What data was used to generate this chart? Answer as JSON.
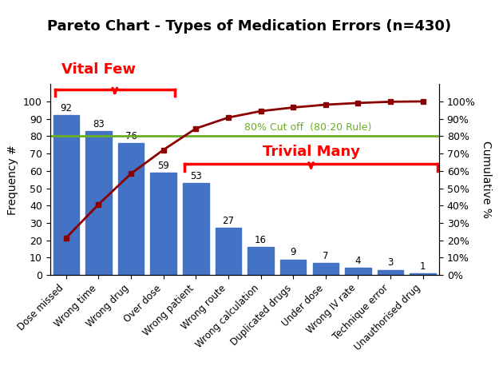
{
  "title": "Pareto Chart - Types of Medication Errors (n=430)",
  "categories": [
    "Dose missed",
    "Wrong time",
    "Wrong drug",
    "Over dose",
    "Wrong patient",
    "Wrong route",
    "Wrong calculation",
    "Duplicated drugs",
    "Under dose",
    "Wrong IV rate",
    "Technique error",
    "Unauthorised drug"
  ],
  "values": [
    92,
    83,
    76,
    59,
    53,
    27,
    16,
    9,
    7,
    4,
    3,
    1
  ],
  "cumulative_pct": [
    21.4,
    40.7,
    58.4,
    72.1,
    84.4,
    90.7,
    94.4,
    96.5,
    98.1,
    99.1,
    99.8,
    100.0
  ],
  "bar_color": "#4472C4",
  "line_color": "#8B0000",
  "cutoff_color": "#6AAF23",
  "cutoff_value": 80,
  "ylabel_left": "Frequency #",
  "ylabel_right": "Cumulative %",
  "vital_few_label": "Vital Few",
  "trivial_many_label": "Trivial Many",
  "cutoff_label": "80% Cut off  (80:20 Rule)",
  "vital_few_color": "#FF0000",
  "trivial_many_color": "#FF0000",
  "background_color": "#FFFFFF",
  "title_fontsize": 13,
  "label_fontsize": 9,
  "figsize": [
    6.25,
    4.78
  ],
  "dpi": 100
}
